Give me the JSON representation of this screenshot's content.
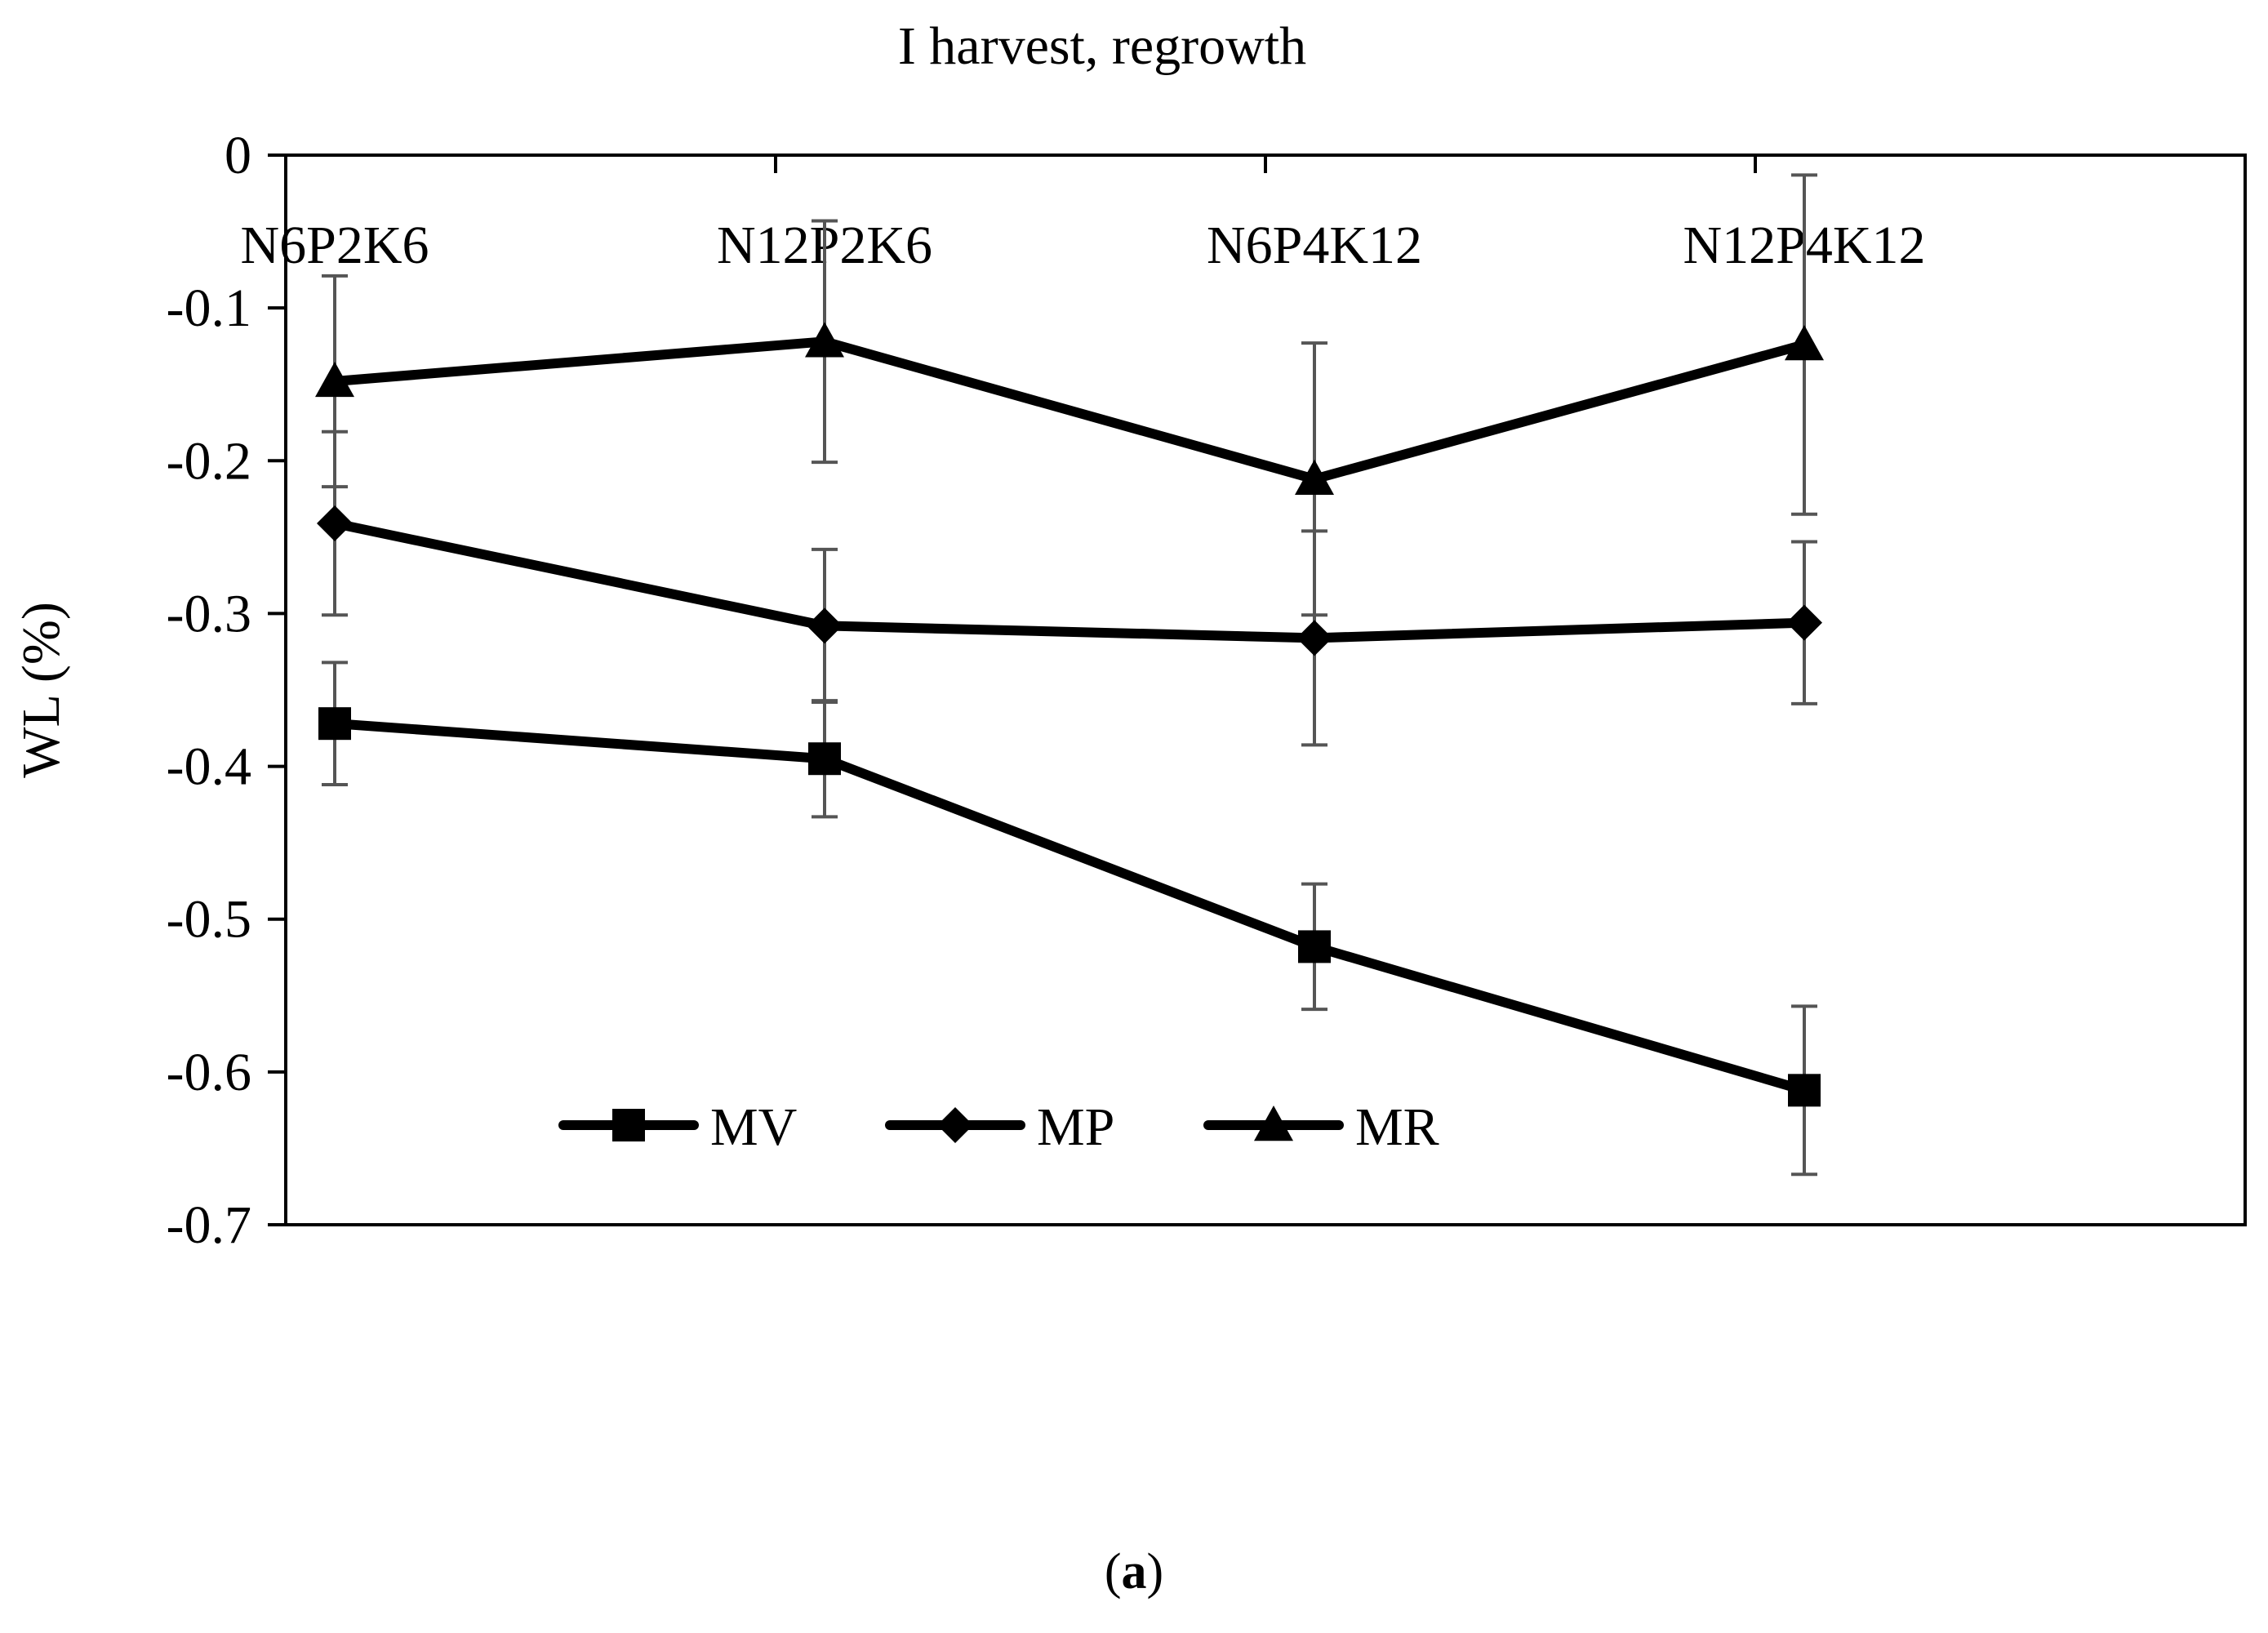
{
  "chart_data": {
    "type": "line",
    "title": "I harvest, regrowth",
    "xlabel": "",
    "ylabel": "WL (%)",
    "ylim": [
      -0.7,
      0
    ],
    "yticks": [
      0,
      -0.1,
      -0.2,
      -0.3,
      -0.4,
      -0.5,
      -0.6,
      -0.7
    ],
    "ytick_labels": [
      "0",
      "-0.1",
      "-0.2",
      "-0.3",
      "-0.4",
      "-0.5",
      "-0.6",
      "-0.7"
    ],
    "categories": [
      "N6P2K6",
      "N12P2K6",
      "N6P4K12",
      "N12P4K12"
    ],
    "category_labels_position": "top",
    "grid": false,
    "legend": {
      "placement": "bottom-left inside plot",
      "entries": [
        "MV",
        "MP",
        "MR"
      ]
    },
    "series": [
      {
        "name": "MV",
        "marker": "square",
        "values": [
          -0.372,
          -0.395,
          -0.518,
          -0.612
        ],
        "errors": [
          0.04,
          0.038,
          0.041,
          0.055
        ]
      },
      {
        "name": "MP",
        "marker": "diamond",
        "values": [
          -0.241,
          -0.308,
          -0.316,
          -0.306
        ],
        "errors": [
          0.06,
          0.05,
          0.07,
          0.053
        ]
      },
      {
        "name": "MR",
        "marker": "triangle",
        "values": [
          -0.148,
          -0.122,
          -0.212,
          -0.124
        ],
        "errors": [
          0.069,
          0.079,
          0.089,
          0.111
        ]
      }
    ],
    "colors": {
      "line": "#000000",
      "errorbar": "#555555",
      "axis": "#000000"
    }
  },
  "caption": {
    "prefix": "(",
    "letter": "a",
    "suffix": ")"
  }
}
